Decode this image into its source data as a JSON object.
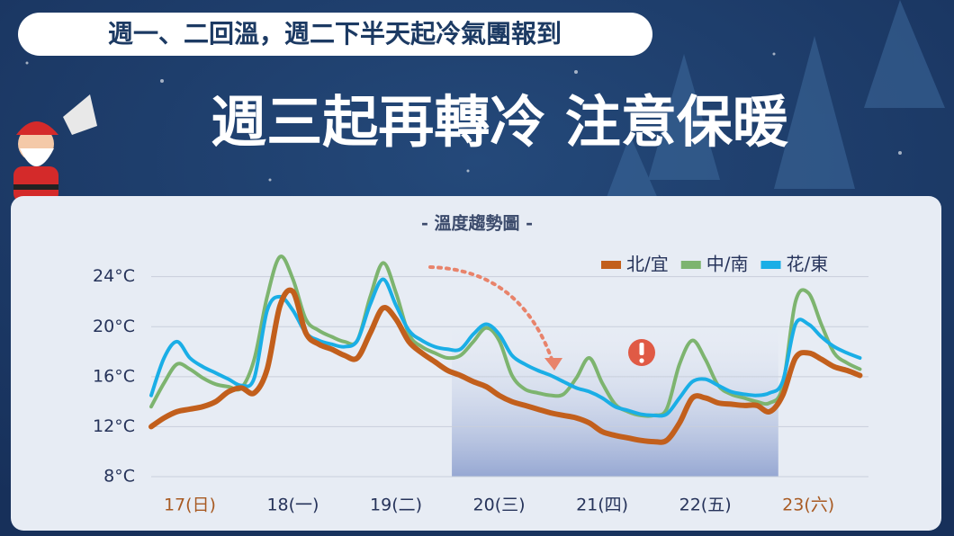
{
  "header": {
    "subtitle": "週一、二回溫，週二下半天起冷氣團報到",
    "title": "週三起再轉冷 注意保暖"
  },
  "chart_data": {
    "type": "line",
    "title": "- 溫度趨勢圖 -",
    "x": [
      3,
      6,
      9,
      12,
      15,
      18,
      21,
      24,
      27,
      30,
      33,
      36,
      39,
      42,
      45,
      48,
      51,
      54,
      57,
      60,
      63,
      66,
      69,
      72,
      75,
      78,
      81,
      84,
      87,
      90,
      93,
      96,
      99,
      102,
      105,
      108,
      111,
      114,
      117,
      120,
      123,
      126,
      129,
      132,
      135,
      138,
      141,
      144,
      147,
      150,
      153,
      156,
      159,
      162,
      165,
      168
    ],
    "series": [
      {
        "name": "北/宜",
        "color": "#c25f1c",
        "values": [
          12.0,
          12.7,
          13.2,
          13.4,
          13.6,
          14.0,
          14.8,
          15.1,
          14.7,
          16.6,
          21.7,
          22.8,
          19.5,
          18.6,
          18.2,
          17.7,
          17.5,
          19.5,
          21.5,
          20.6,
          18.8,
          17.9,
          17.2,
          16.5,
          16.1,
          15.6,
          15.2,
          14.5,
          14.0,
          13.7,
          13.4,
          13.1,
          12.9,
          12.7,
          12.3,
          11.6,
          11.3,
          11.1,
          10.9,
          10.8,
          10.9,
          12.3,
          14.3,
          14.3,
          13.9,
          13.8,
          13.7,
          13.7,
          13.2,
          14.5,
          17.5,
          17.9,
          17.4,
          16.8,
          16.5,
          16.1
        ]
      },
      {
        "name": "中/南",
        "color": "#7db46f",
        "values": [
          13.6,
          15.5,
          17.0,
          16.6,
          15.9,
          15.4,
          15.2,
          15.1,
          17.4,
          22.4,
          25.6,
          23.8,
          20.6,
          19.7,
          19.2,
          18.8,
          18.9,
          22.4,
          25.1,
          22.7,
          19.4,
          18.4,
          17.9,
          17.5,
          17.7,
          18.8,
          19.9,
          18.9,
          16.1,
          15.0,
          14.7,
          14.5,
          14.6,
          15.9,
          17.5,
          15.5,
          13.8,
          13.2,
          12.9,
          12.9,
          13.4,
          17.0,
          18.9,
          17.4,
          15.3,
          14.6,
          14.3,
          14.0,
          13.9,
          15.2,
          22.0,
          22.7,
          20.2,
          17.9,
          17.1,
          16.6
        ]
      },
      {
        "name": "花/東",
        "color": "#1aaee6",
        "values": [
          14.5,
          17.5,
          18.8,
          17.5,
          16.8,
          16.3,
          15.8,
          15.3,
          15.9,
          21.3,
          22.4,
          21.3,
          19.5,
          18.9,
          18.6,
          18.4,
          18.9,
          21.8,
          23.8,
          21.7,
          19.7,
          18.9,
          18.4,
          18.2,
          18.2,
          19.4,
          20.2,
          19.4,
          17.7,
          17.0,
          16.5,
          16.1,
          15.6,
          15.1,
          14.8,
          14.3,
          13.6,
          13.3,
          13.0,
          12.9,
          13.0,
          14.3,
          15.6,
          15.8,
          15.3,
          14.8,
          14.6,
          14.5,
          14.7,
          15.6,
          20.2,
          20.2,
          19.2,
          18.4,
          17.9,
          17.5
        ]
      }
    ],
    "xlim": [
      3,
      170
    ],
    "xticks": [
      {
        "value": 12,
        "label": "17(日)"
      },
      {
        "value": 36,
        "label": "18(一)"
      },
      {
        "value": 60,
        "label": "19(二)"
      },
      {
        "value": 84,
        "label": "20(三)"
      },
      {
        "value": 108,
        "label": "21(四)"
      },
      {
        "value": 132,
        "label": "22(五)"
      },
      {
        "value": 156,
        "label": "23(六)"
      }
    ],
    "xtick_colors": [
      "#a85a22",
      "#26335a",
      "#26335a",
      "#26335a",
      "#26335a",
      "#26335a",
      "#a85a22"
    ],
    "ylim": [
      8,
      27
    ],
    "yticks": [
      {
        "value": 8,
        "label": "8°C"
      },
      {
        "value": 12,
        "label": "12°C"
      },
      {
        "value": 16,
        "label": "16°C"
      },
      {
        "value": 20,
        "label": "20°C"
      },
      {
        "value": 24,
        "label": "24°C"
      }
    ],
    "grid": true,
    "highlight_range": [
      73,
      149
    ],
    "highlight_color": "#8da0cf",
    "legend": "top-right"
  }
}
